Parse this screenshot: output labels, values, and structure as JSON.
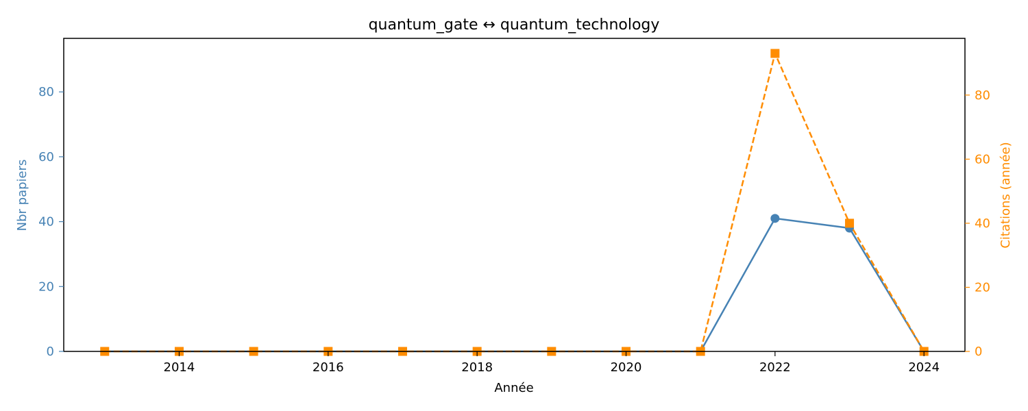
{
  "chart_data": {
    "type": "line",
    "title": "quantum_gate  ↔  quantum_technology",
    "xlabel": "Année",
    "ylabel_left": "Nbr papiers",
    "ylabel_right": "Citations (année)",
    "x": [
      2013,
      2014,
      2015,
      2016,
      2017,
      2018,
      2019,
      2020,
      2021,
      2022,
      2023,
      2024
    ],
    "xlim": [
      2012.45,
      2024.55
    ],
    "xticks": [
      2014,
      2016,
      2018,
      2020,
      2022,
      2024
    ],
    "ylim_left": [
      0,
      96.5
    ],
    "yticks_left": [
      0,
      20,
      40,
      60,
      80
    ],
    "ylim_right": [
      0,
      97.7
    ],
    "yticks_right": [
      0,
      20,
      40,
      60,
      80
    ],
    "grid": false,
    "series": [
      {
        "axis": "left",
        "color": "#4682b4",
        "style": "solid",
        "marker": "circle",
        "values": [
          0,
          0,
          0,
          0,
          0,
          0,
          0,
          0,
          0,
          41,
          38,
          0
        ]
      },
      {
        "axis": "right",
        "color": "#ff8c00",
        "style": "dashed",
        "marker": "square",
        "values": [
          0,
          0,
          0,
          0,
          0,
          0,
          0,
          0,
          0,
          93,
          40,
          0
        ]
      }
    ]
  }
}
